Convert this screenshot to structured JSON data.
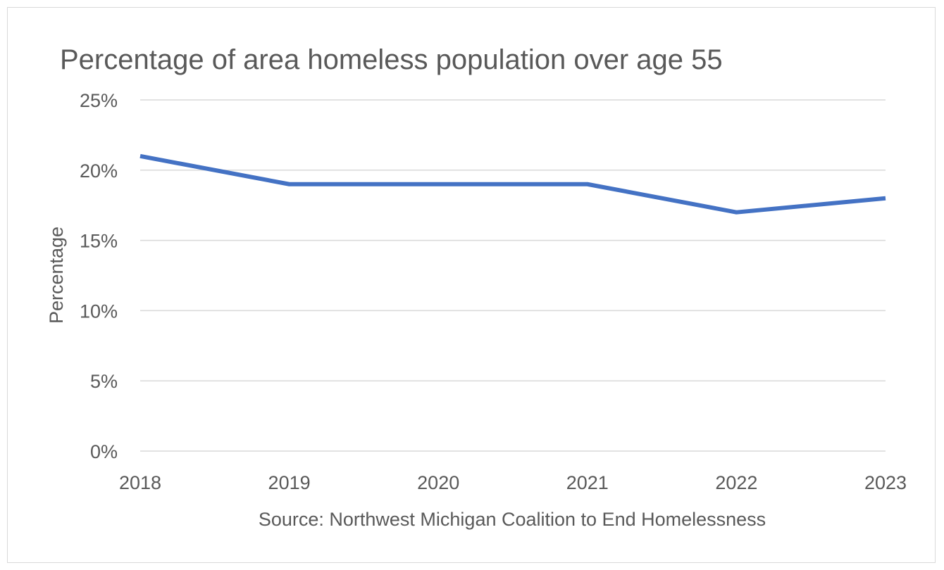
{
  "chart_data": {
    "type": "line",
    "title": "Percentage of area homeless population over age 55",
    "xlabel": "Source: Northwest Michigan Coalition to End Homelessness",
    "ylabel": "Percentage",
    "categories": [
      "2018",
      "2019",
      "2020",
      "2021",
      "2022",
      "2023"
    ],
    "series": [
      {
        "values": [
          21,
          19,
          19,
          19,
          17,
          18
        ],
        "color": "#4472c4"
      }
    ],
    "ylim": [
      0,
      25
    ],
    "yticks": [
      0,
      5,
      10,
      15,
      20,
      25
    ],
    "ytick_labels": [
      "0%",
      "5%",
      "10%",
      "15%",
      "20%",
      "25%"
    ],
    "grid": true,
    "legend": "none"
  }
}
